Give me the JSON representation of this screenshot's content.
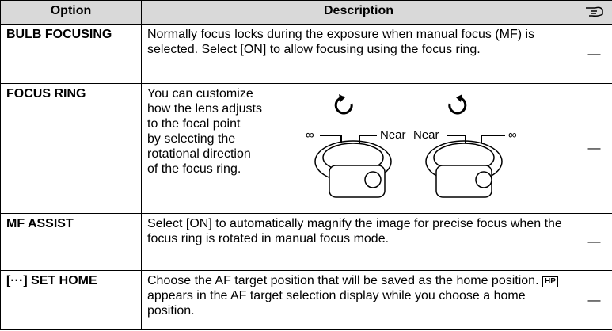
{
  "table": {
    "header": [
      "Option",
      "Description"
    ],
    "rows": [
      {
        "option": "BULB FOCUSING",
        "description": "Normally focus locks during the exposure when manual focus (MF) is selected. Select [ON] to allow focusing using the focus ring.",
        "ref": "—"
      },
      {
        "option": "FOCUS RING",
        "description": [
          "You can customize",
          "how the lens adjusts",
          "to the focal point",
          "by selecting the",
          "rotational direction",
          "of the focus ring."
        ],
        "illustration": [
          "∞",
          "Near",
          "Near",
          "∞"
        ],
        "ref": "—"
      },
      {
        "option": "MF ASSIST",
        "description": "Select [ON] to automatically magnify the image for precise focus when the focus ring is rotated in manual focus mode.",
        "ref": "—"
      },
      {
        "option": "[···] SET HOME",
        "description": [
          "Choose the AF target position that will be saved as the home position.",
          "HP",
          "appears in the AF target selection display while you choose a home position."
        ],
        "ref": "—"
      }
    ]
  }
}
